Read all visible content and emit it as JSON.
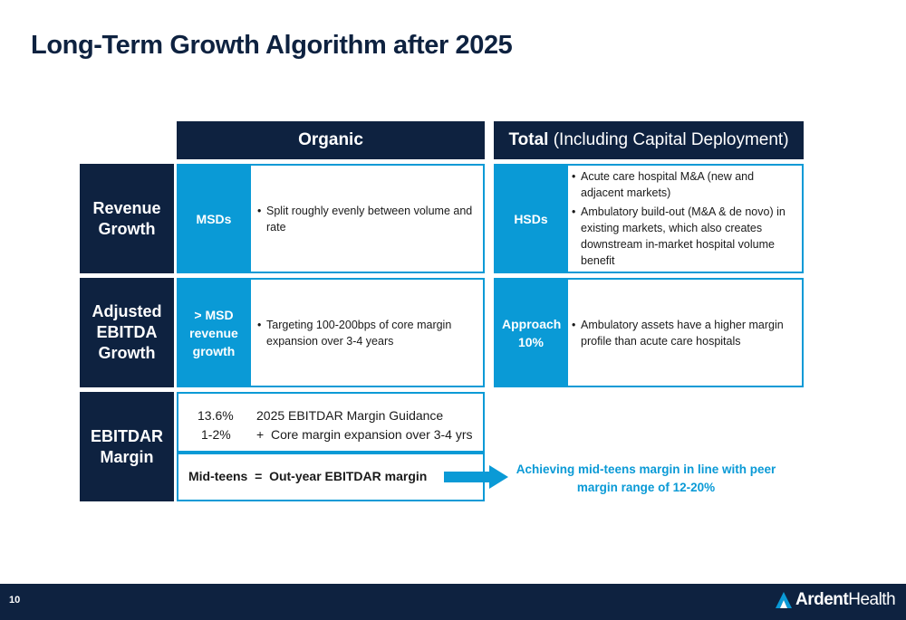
{
  "title": "Long-Term Growth Algorithm after 2025",
  "columns": {
    "organic": "Organic",
    "total_bold": "Total",
    "total_rest": " (Including Capital Deployment)"
  },
  "rows": {
    "revenue": {
      "label": "Revenue Growth",
      "organic_tag": "MSDs",
      "organic_bullets": [
        "Split roughly evenly between volume and rate"
      ],
      "total_tag": "HSDs",
      "total_bullets": [
        "Acute care hospital M&A (new and adjacent markets)",
        "Ambulatory build-out (M&A & de novo) in existing markets, which also creates downstream in-market hospital volume benefit"
      ]
    },
    "ebitda": {
      "label": "Adjusted EBITDA Growth",
      "organic_tag": "> MSD revenue growth",
      "organic_bullets": [
        "Targeting 100-200bps of core margin expansion over 3-4 years"
      ],
      "total_tag": "Approach 10%",
      "total_bullets": [
        "Ambulatory assets have a higher margin profile than acute care hospitals"
      ]
    },
    "ebitdar": {
      "label": "EBITDAR Margin",
      "line1_value": "13.6%",
      "line1_text": "2025 EBITDAR Margin Guidance",
      "line2_value": "1-2%",
      "line2_text": "+  Core margin expansion over 3-4 yrs",
      "result": "Mid-teens  =  Out-year EBITDAR margin",
      "achieve": "Achieving mid-teens margin in line with peer margin range of 12-20%"
    }
  },
  "footer": {
    "page_number": "10",
    "logo_word1": "Ardent",
    "logo_word2": "Health"
  },
  "colors": {
    "navy": "#0e2240",
    "accent_blue": "#0a9ad6"
  }
}
